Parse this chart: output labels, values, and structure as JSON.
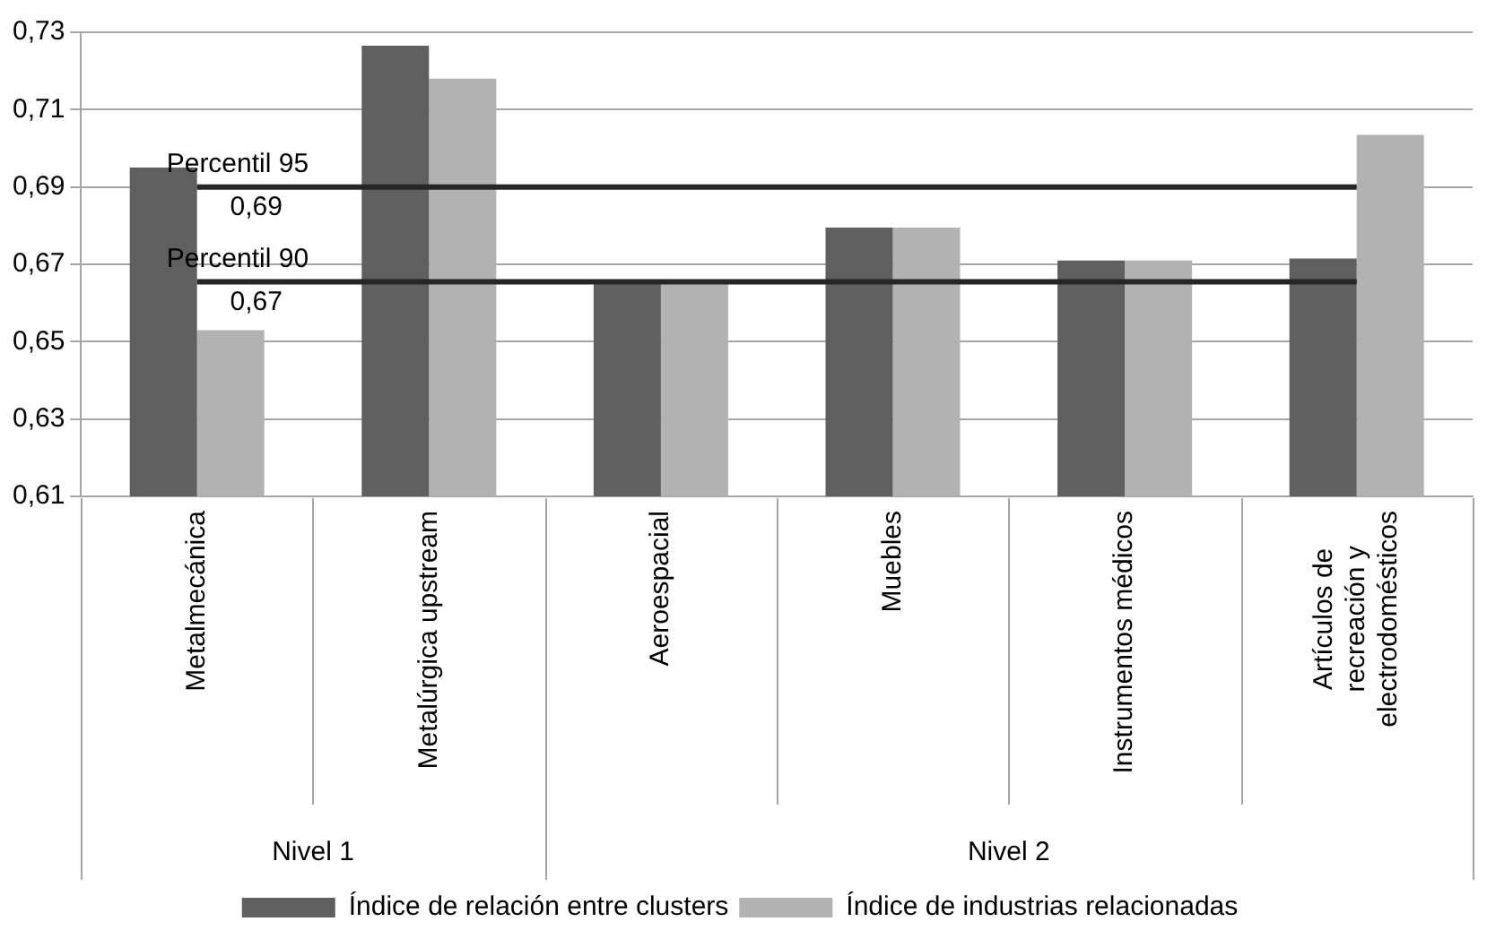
{
  "chart_data": {
    "type": "bar",
    "categories": [
      "Metalmecánica",
      "Metalúrgica upstream",
      "Aeroespacial",
      "Muebles",
      "Instrumentos médicos",
      "Artículos de recreación y electrodomésticos"
    ],
    "series": [
      {
        "name": "Índice de relación entre clusters",
        "color": "#5f5f5f",
        "values": [
          0.695,
          0.7265,
          0.666,
          0.6795,
          0.671,
          0.6715
        ]
      },
      {
        "name": "Índice de industrias relacionadas",
        "color": "#b2b2b2",
        "values": [
          0.653,
          0.718,
          0.666,
          0.6795,
          0.671,
          0.7035
        ]
      }
    ],
    "ylim": [
      0.61,
      0.73
    ],
    "yticks": [
      {
        "value": 0.61,
        "label": "0,61"
      },
      {
        "value": 0.63,
        "label": "0,63"
      },
      {
        "value": 0.65,
        "label": "0,65"
      },
      {
        "value": 0.67,
        "label": "0,67"
      },
      {
        "value": 0.69,
        "label": "0,69"
      },
      {
        "value": 0.71,
        "label": "0,71"
      },
      {
        "value": 0.73,
        "label": "0,73"
      }
    ],
    "ref_lines": [
      {
        "axis": "y",
        "value": 0.69,
        "label": "Percentil 95",
        "color": "#262626"
      },
      {
        "axis": "y",
        "value": 0.6655,
        "label": "Percentil 90",
        "color": "#262626"
      }
    ],
    "annotations": [
      {
        "text": "0,69",
        "x": "Metalmecánica",
        "y": 0.69
      },
      {
        "text": "0,67",
        "x": "Metalmecánica",
        "y": 0.6655
      },
      "Nivel 1",
      "Nivel 2"
    ],
    "grid": "y",
    "legend": "bottom"
  }
}
